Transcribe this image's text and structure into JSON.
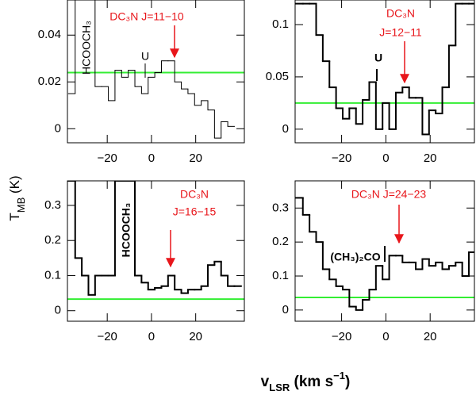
{
  "figure": {
    "xlabel": [
      {
        "text": "v"
      },
      {
        "text": "LSR",
        "sub": true
      },
      {
        "text": " (km s"
      },
      {
        "text": "−1",
        "sup": true
      },
      {
        "text": ")"
      }
    ],
    "ylabel": [
      {
        "text": "T"
      },
      {
        "text": "MB",
        "sub": true
      },
      {
        "text": " (K)"
      }
    ]
  },
  "chart_data": [
    {
      "type": "step",
      "color": "#000000",
      "x": [
        -36,
        -33,
        -30,
        -27,
        -24,
        -21,
        -18,
        -15,
        -12,
        -9,
        -6,
        -3,
        0,
        3,
        6,
        9,
        12,
        15,
        18,
        21,
        24,
        27,
        30,
        33,
        36
      ],
      "values": [
        0.015,
        0.055,
        0.055,
        0.055,
        0.018,
        0.018,
        0.012,
        0.025,
        0.022,
        0.025,
        0.018,
        0.015,
        0.022,
        0.024,
        0.029,
        0.029,
        0.02,
        0.017,
        0.015,
        0.01,
        0.012,
        0.008,
        -0.004,
        0.003,
        0.001
      ],
      "xlim": [
        -38,
        42
      ],
      "ylim": [
        -0.006,
        0.055
      ],
      "xticks": [
        {
          "value": -20,
          "label": "−20"
        },
        0,
        20
      ],
      "yticks": [
        0,
        0.02,
        0.04
      ],
      "baseline": 0.024,
      "baseline_color": "#33ee33",
      "annotations": [
        "DC₃N  J=11−10",
        "U",
        "HCOOCH₃"
      ]
    },
    {
      "type": "step",
      "color": "#000000",
      "x": [
        -39,
        -36,
        -33,
        -30,
        -27,
        -24,
        -21,
        -18,
        -15,
        -12,
        -9,
        -6,
        -3,
        0,
        3,
        6,
        9,
        12,
        15,
        18,
        21,
        24,
        27,
        30,
        33,
        36,
        39
      ],
      "values": [
        0.12,
        0.12,
        0.12,
        0.09,
        0.065,
        0.04,
        0.02,
        0.01,
        0.02,
        0.005,
        0.028,
        0.045,
        0.0,
        0.025,
        0.0,
        0.035,
        0.04,
        0.03,
        0.03,
        -0.005,
        0.018,
        0.015,
        0.04,
        0.08,
        0.12,
        0.12,
        0.12
      ],
      "xlim": [
        -41,
        40
      ],
      "ylim": [
        -0.013,
        0.1235
      ],
      "xticks": [
        {
          "value": -20,
          "label": "−20"
        },
        0,
        20
      ],
      "yticks": [
        0,
        0.05,
        0.1
      ],
      "baseline": 0.025,
      "baseline_color": "#33ee33",
      "annotations": [
        "DC₃N",
        "J=12−11",
        "U"
      ]
    },
    {
      "type": "step",
      "color": "#000000",
      "x": [
        -36,
        -33,
        -30,
        -27,
        -24,
        -21,
        -18,
        -15,
        -12,
        -9,
        -6,
        -3,
        0,
        3,
        6,
        9,
        12,
        15,
        18,
        21,
        24,
        27,
        30,
        33,
        36,
        39
      ],
      "values": [
        0.37,
        0.15,
        0.1,
        0.045,
        0.1,
        0.1,
        0.1,
        0.37,
        0.37,
        0.37,
        0.1,
        0.08,
        0.06,
        0.065,
        0.07,
        0.1,
        0.06,
        0.05,
        0.06,
        0.06,
        0.07,
        0.13,
        0.14,
        0.1,
        0.07,
        0.07
      ],
      "xlim": [
        -38,
        42
      ],
      "ylim": [
        -0.03,
        0.37
      ],
      "xticks": [
        {
          "value": -20,
          "label": "−20"
        },
        0,
        20
      ],
      "yticks": [
        0,
        0.1,
        0.2,
        0.3
      ],
      "baseline": 0.033,
      "baseline_color": "#33ee33",
      "annotations": [
        "HCOOCH₃",
        "DC₃N",
        "J=16−15"
      ]
    },
    {
      "type": "step",
      "color": "#000000",
      "x": [
        -39,
        -36,
        -33,
        -30,
        -27,
        -24,
        -21,
        -18,
        -15,
        -12,
        -9,
        -6,
        -3,
        0,
        3,
        6,
        9,
        12,
        15,
        18,
        21,
        24,
        27,
        30,
        33,
        36,
        39
      ],
      "values": [
        0.33,
        0.28,
        0.23,
        0.2,
        0.12,
        0.09,
        0.07,
        0.06,
        0.01,
        0.0,
        0.03,
        0.06,
        0.13,
        0.09,
        0.16,
        0.16,
        0.14,
        0.14,
        0.12,
        0.15,
        0.13,
        0.14,
        0.12,
        0.13,
        0.14,
        0.1,
        0.17
      ],
      "xlim": [
        -41,
        40
      ],
      "ylim": [
        -0.033,
        0.38
      ],
      "xticks": [
        {
          "value": -20,
          "label": "−20"
        },
        0,
        20
      ],
      "yticks": [
        0,
        0.1,
        0.2,
        0.3
      ],
      "baseline": 0.037,
      "baseline_color": "#33ee33",
      "annotations": [
        "DC₃N  J=24−23",
        "(CH₃)₂CO"
      ]
    }
  ]
}
